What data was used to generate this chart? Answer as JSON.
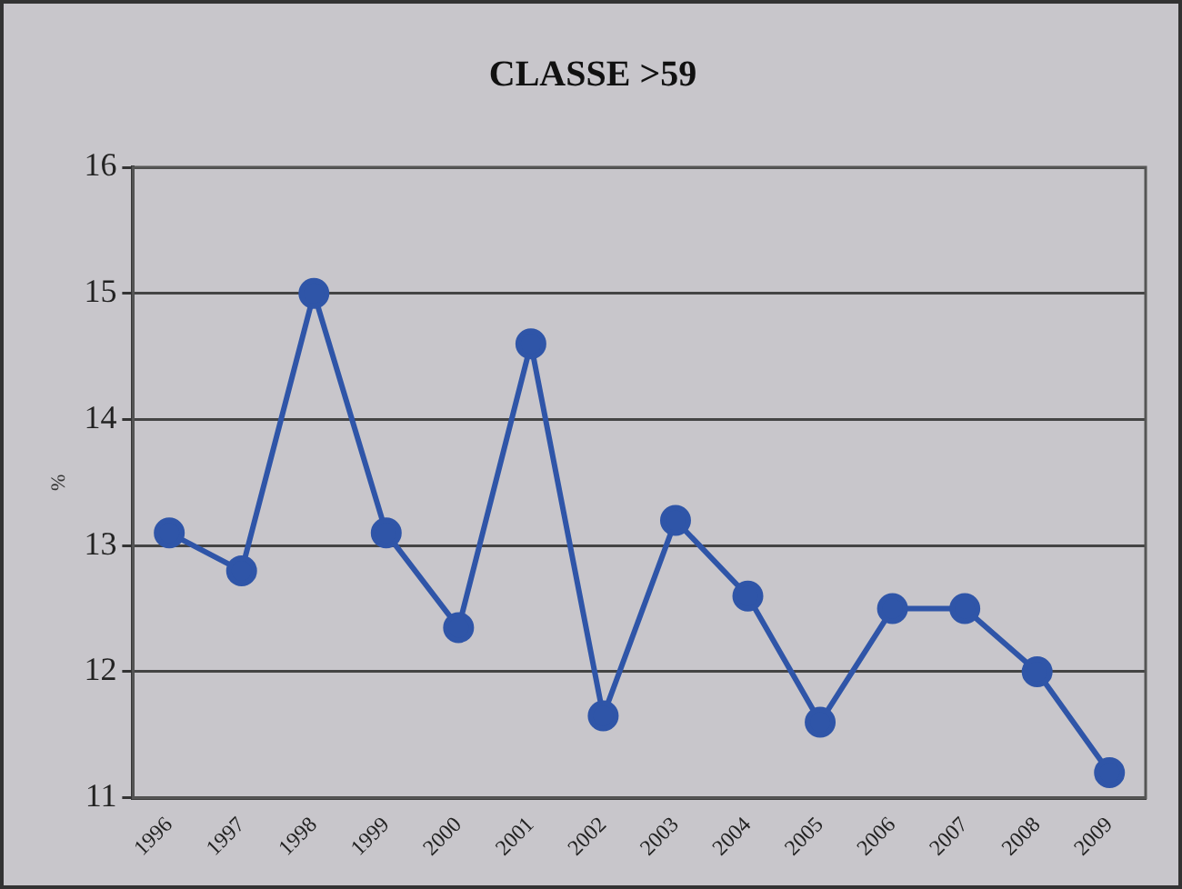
{
  "chart_data": {
    "type": "line",
    "title": "CLASSE >59",
    "ylabel": "%",
    "categories": [
      "1996",
      "1997",
      "1998",
      "1999",
      "2000",
      "2001",
      "2002",
      "2003",
      "2004",
      "2005",
      "2006",
      "2007",
      "2008",
      "2009"
    ],
    "series": [
      {
        "color": "#2f55a8",
        "values": [
          13.1,
          12.8,
          15.0,
          13.1,
          12.35,
          14.6,
          11.65,
          13.2,
          12.6,
          11.6,
          12.5,
          12.5,
          12.0,
          11.2
        ]
      }
    ],
    "ylim": [
      11,
      16
    ],
    "yticks": [
      11,
      12,
      13,
      14,
      15,
      16
    ],
    "grid": "y",
    "legend": false,
    "marker": "circle",
    "line_style": "solid"
  }
}
